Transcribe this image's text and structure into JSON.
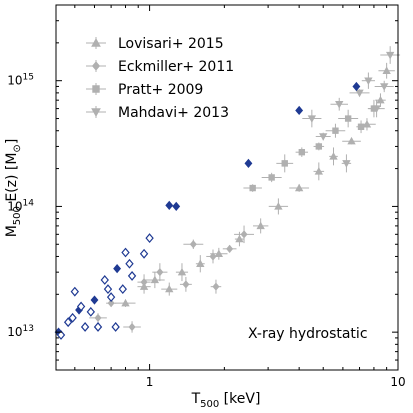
{
  "chart_data": {
    "type": "scatter",
    "xlabel": {
      "main": "T",
      "sub": "500",
      "rest": " [keV]"
    },
    "ylabel": {
      "main": "M",
      "sub": "500",
      "rest": " E(z) [M",
      "symbol": "⊙",
      "close": "]"
    },
    "xscale": "log",
    "yscale": "log",
    "xlim": [
      0.42,
      10
    ],
    "ylim": [
      5000000000000.0,
      4000000000000000.0
    ],
    "x_tick_labels": [
      {
        "value": 1,
        "label": "1"
      },
      {
        "value": 10,
        "label": "10"
      }
    ],
    "y_tick_labels": [
      {
        "value": 10000000000000.0,
        "base": "10",
        "exp": "13"
      },
      {
        "value": 100000000000000.0,
        "base": "10",
        "exp": "14"
      },
      {
        "value": 1000000000000000.0,
        "base": "10",
        "exp": "15"
      }
    ],
    "legend_position": "top-left",
    "annotation": "X-ray hydrostatic",
    "colors": {
      "gray": "#b0b0b0",
      "blue": "#1f3a93"
    },
    "legend": [
      {
        "label": "Lovisari+ 2015",
        "marker": "triangle-up"
      },
      {
        "label": "Eckmiller+ 2011",
        "marker": "diamond"
      },
      {
        "label": "Pratt+ 2009",
        "marker": "square"
      },
      {
        "label": "Mahdavi+ 2013",
        "marker": "triangle-down"
      }
    ],
    "series": [
      {
        "name": "Lovisari+ 2015",
        "marker": "triangle-up",
        "color": "gray",
        "points": [
          {
            "x": 0.8,
            "y": 17000000000000.0
          },
          {
            "x": 0.95,
            "y": 23000000000000.0
          },
          {
            "x": 1.05,
            "y": 26000000000000.0
          },
          {
            "x": 1.2,
            "y": 22000000000000.0
          },
          {
            "x": 1.35,
            "y": 30000000000000.0
          },
          {
            "x": 1.6,
            "y": 35000000000000.0
          },
          {
            "x": 1.9,
            "y": 42000000000000.0
          },
          {
            "x": 2.3,
            "y": 55000000000000.0
          },
          {
            "x": 2.8,
            "y": 70000000000000.0
          },
          {
            "x": 3.3,
            "y": 100000000000000.0
          },
          {
            "x": 4.0,
            "y": 140000000000000.0
          },
          {
            "x": 4.8,
            "y": 190000000000000.0
          },
          {
            "x": 5.5,
            "y": 250000000000000.0
          },
          {
            "x": 6.5,
            "y": 330000000000000.0
          },
          {
            "x": 7.5,
            "y": 450000000000000.0
          },
          {
            "x": 8.5,
            "y": 700000000000000.0
          },
          {
            "x": 9.0,
            "y": 1200000000000000.0
          }
        ]
      },
      {
        "name": "Eckmiller+ 2011",
        "marker": "diamond",
        "color": "gray",
        "points": [
          {
            "x": 0.62,
            "y": 13000000000000.0
          },
          {
            "x": 0.7,
            "y": 17000000000000.0
          },
          {
            "x": 0.85,
            "y": 11000000000000.0
          },
          {
            "x": 0.95,
            "y": 25000000000000.0
          },
          {
            "x": 1.1,
            "y": 30000000000000.0
          },
          {
            "x": 1.4,
            "y": 24000000000000.0
          },
          {
            "x": 1.8,
            "y": 40000000000000.0
          },
          {
            "x": 2.1,
            "y": 46000000000000.0
          },
          {
            "x": 1.85,
            "y": 23000000000000.0
          },
          {
            "x": 2.4,
            "y": 60000000000000.0
          },
          {
            "x": 1.5,
            "y": 50000000000000.0
          }
        ]
      },
      {
        "name": "Pratt+ 2009",
        "marker": "square",
        "color": "gray",
        "points": [
          {
            "x": 2.6,
            "y": 140000000000000.0
          },
          {
            "x": 3.1,
            "y": 170000000000000.0
          },
          {
            "x": 3.5,
            "y": 220000000000000.0
          },
          {
            "x": 4.1,
            "y": 270000000000000.0
          },
          {
            "x": 4.8,
            "y": 300000000000000.0
          },
          {
            "x": 5.6,
            "y": 400000000000000.0
          },
          {
            "x": 6.3,
            "y": 500000000000000.0
          },
          {
            "x": 7.1,
            "y": 430000000000000.0
          },
          {
            "x": 8.0,
            "y": 600000000000000.0
          }
        ]
      },
      {
        "name": "Mahdavi+ 2013",
        "marker": "triangle-down",
        "color": "gray",
        "points": [
          {
            "x": 4.5,
            "y": 500000000000000.0
          },
          {
            "x": 5.0,
            "y": 360000000000000.0
          },
          {
            "x": 5.8,
            "y": 650000000000000.0
          },
          {
            "x": 6.2,
            "y": 220000000000000.0
          },
          {
            "x": 7.0,
            "y": 800000000000000.0
          },
          {
            "x": 7.6,
            "y": 1000000000000000.0
          },
          {
            "x": 8.2,
            "y": 600000000000000.0
          },
          {
            "x": 8.8,
            "y": 900000000000000.0
          },
          {
            "x": 9.3,
            "y": 1600000000000000.0
          }
        ]
      },
      {
        "name": "",
        "marker": "diamond",
        "color": "blue",
        "filled": true,
        "points": [
          {
            "x": 0.43,
            "y": 10000000000000.0
          },
          {
            "x": 0.52,
            "y": 15000000000000.0
          },
          {
            "x": 0.6,
            "y": 18000000000000.0
          },
          {
            "x": 0.74,
            "y": 32000000000000.0
          },
          {
            "x": 1.2,
            "y": 102000000000000.0
          },
          {
            "x": 1.28,
            "y": 100000000000000.0
          },
          {
            "x": 2.5,
            "y": 220000000000000.0
          },
          {
            "x": 4.0,
            "y": 580000000000000.0
          },
          {
            "x": 6.8,
            "y": 900000000000000.0
          }
        ]
      },
      {
        "name": "",
        "marker": "diamond",
        "color": "blue",
        "filled": false,
        "points": [
          {
            "x": 0.44,
            "y": 9500000000000.0
          },
          {
            "x": 0.47,
            "y": 12000000000000.0
          },
          {
            "x": 0.49,
            "y": 13000000000000.0
          },
          {
            "x": 0.5,
            "y": 21000000000000.0
          },
          {
            "x": 0.53,
            "y": 16000000000000.0
          },
          {
            "x": 0.55,
            "y": 11000000000000.0
          },
          {
            "x": 0.58,
            "y": 14500000000000.0
          },
          {
            "x": 0.62,
            "y": 11000000000000.0
          },
          {
            "x": 0.66,
            "y": 26000000000000.0
          },
          {
            "x": 0.68,
            "y": 22000000000000.0
          },
          {
            "x": 0.7,
            "y": 19000000000000.0
          },
          {
            "x": 0.73,
            "y": 11000000000000.0
          },
          {
            "x": 0.78,
            "y": 22000000000000.0
          },
          {
            "x": 0.8,
            "y": 43000000000000.0
          },
          {
            "x": 0.83,
            "y": 35000000000000.0
          },
          {
            "x": 0.85,
            "y": 28000000000000.0
          },
          {
            "x": 0.95,
            "y": 42000000000000.0
          },
          {
            "x": 1.0,
            "y": 56000000000000.0
          }
        ]
      }
    ]
  }
}
